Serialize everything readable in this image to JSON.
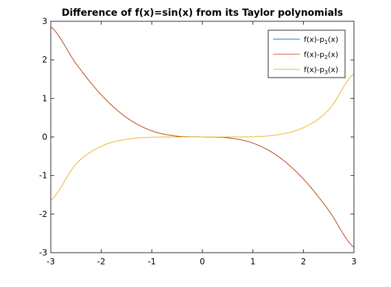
{
  "chart_data": {
    "type": "line",
    "title": "Difference of f(x)=sin(x) from its Taylor polynomials",
    "xlabel": "",
    "ylabel": "",
    "xlim": [
      -3,
      3
    ],
    "ylim": [
      -3,
      3
    ],
    "x_ticks": [
      -3,
      -2,
      -1,
      0,
      1,
      2,
      3
    ],
    "y_ticks": [
      -3,
      -2,
      -1,
      0,
      1,
      2,
      3
    ],
    "grid": false,
    "legend_position": "top-right",
    "x": [
      -3,
      -2.5,
      -2,
      -1.5,
      -1,
      -0.5,
      0,
      0.5,
      1,
      1.5,
      2,
      2.5,
      3
    ],
    "series": [
      {
        "name": "f(x)-p1(x)",
        "name_base": "f(x)-p",
        "name_sub": "1",
        "name_tail": "(x)",
        "color": "#0072bd",
        "values": [
          2.859,
          1.902,
          1.091,
          0.503,
          0.159,
          0.021,
          0,
          -0.021,
          -0.159,
          -0.503,
          -1.091,
          -1.902,
          -2.859
        ]
      },
      {
        "name": "f(x)-p2(x)",
        "name_base": "f(x)-p",
        "name_sub": "2",
        "name_tail": "(x)",
        "color": "#d95319",
        "values": [
          2.859,
          1.902,
          1.091,
          0.503,
          0.159,
          0.021,
          0,
          -0.021,
          -0.159,
          -0.503,
          -1.091,
          -1.902,
          -2.859
        ]
      },
      {
        "name": "f(x)-p3(x)",
        "name_base": "f(x)-p",
        "name_sub": "3",
        "name_tail": "(x)",
        "color": "#edb120",
        "values": [
          -1.641,
          -0.702,
          -0.242,
          -0.06,
          -0.008,
          -0.0003,
          0,
          0.0003,
          0.008,
          0.06,
          0.242,
          0.702,
          1.641
        ]
      }
    ]
  }
}
